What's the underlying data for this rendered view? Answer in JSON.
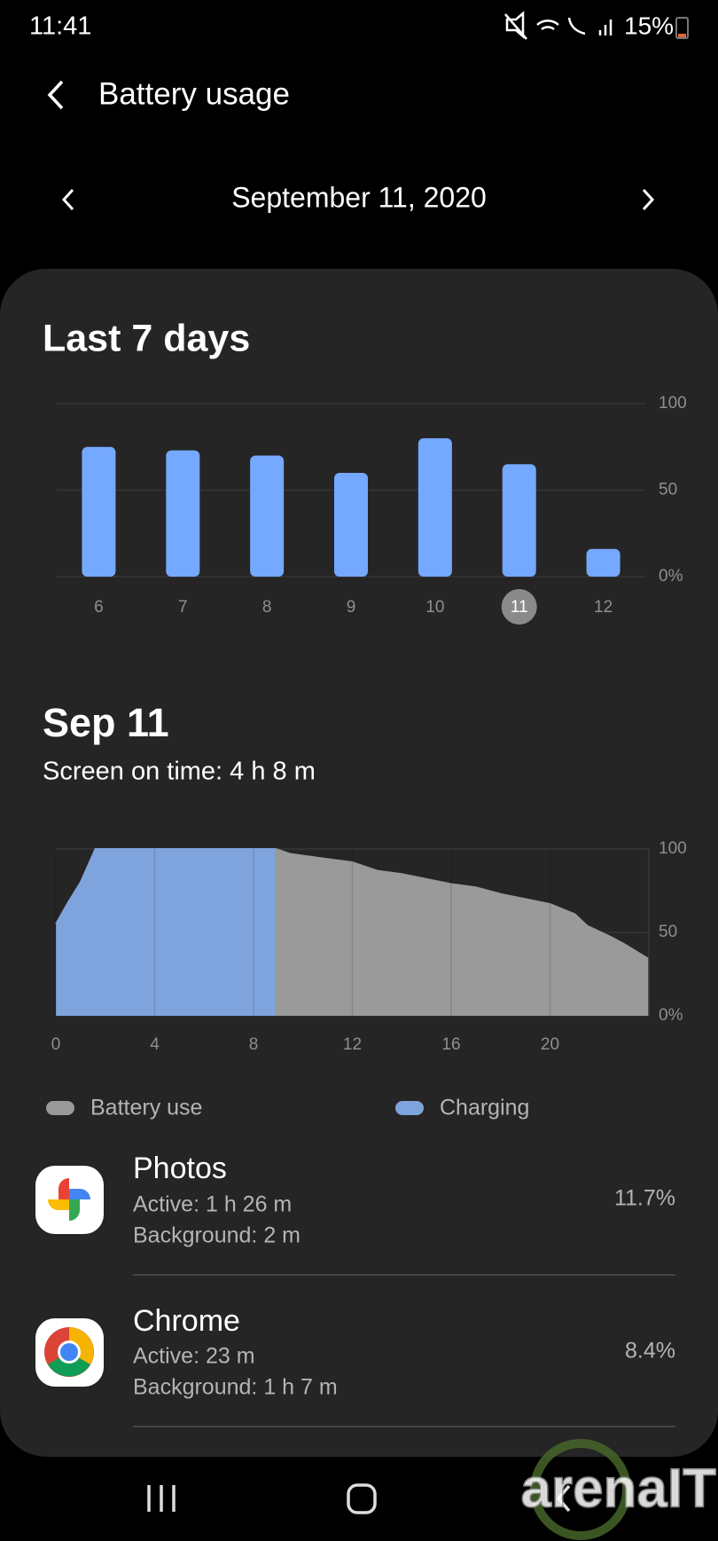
{
  "status_bar": {
    "time": "11:41",
    "battery": "15%"
  },
  "header": {
    "title": "Battery usage"
  },
  "date_nav": {
    "date": "September 11, 2020"
  },
  "chart_data": [
    {
      "type": "bar",
      "title": "Last 7 days",
      "categories": [
        "6",
        "7",
        "8",
        "9",
        "10",
        "11",
        "12"
      ],
      "values": [
        75,
        73,
        70,
        60,
        80,
        65,
        16
      ],
      "color": "#75a8ff",
      "selected_index": 5,
      "ylim": [
        0,
        100
      ],
      "yticks": [
        {
          "value": 0,
          "label": "0%"
        },
        50,
        100
      ],
      "grid": true
    },
    {
      "type": "area",
      "title": "Sep 11",
      "subtitle": "Screen on time: 4 h 8 m",
      "xlim": [
        0,
        24
      ],
      "xticks": [
        0,
        4,
        8,
        12,
        16,
        20
      ],
      "ylim": [
        0,
        100
      ],
      "yticks": [
        {
          "value": 0,
          "label": "0%"
        },
        50,
        100
      ],
      "grid": true,
      "series": [
        {
          "name": "Battery use",
          "color": "#9a9a9a",
          "x": [
            8.9,
            9.5,
            12,
            13,
            14,
            16,
            17,
            18,
            19,
            20,
            21,
            21.5,
            22.5,
            23,
            24
          ],
          "values": [
            100,
            97,
            92,
            87,
            85,
            79,
            77,
            73,
            70,
            67,
            61,
            54,
            47,
            43,
            34
          ]
        },
        {
          "name": "Charging",
          "color": "#7fa3dc",
          "x": [
            0,
            0.5,
            1,
            1.6,
            8.9
          ],
          "values": [
            55,
            68,
            80,
            100,
            100
          ]
        }
      ]
    }
  ],
  "apps": [
    {
      "name": "Photos",
      "active": "Active: 1 h 26 m",
      "background": "Background: 2 m",
      "percent": "11.7%"
    },
    {
      "name": "Chrome",
      "active": "Active: 23 m",
      "background": "Background: 1 h 7 m",
      "percent": "8.4%"
    }
  ],
  "watermark": "arenaIT"
}
